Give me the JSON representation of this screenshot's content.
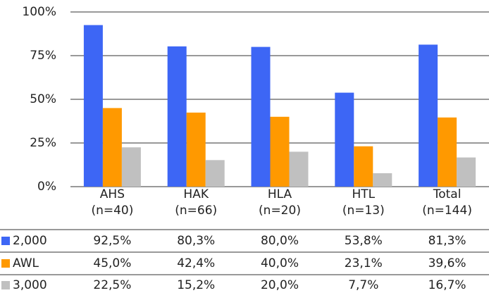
{
  "chart_data": {
    "type": "bar",
    "categories": [
      "AHS",
      "HAK",
      "HLA",
      "HTL",
      "Total"
    ],
    "category_sublabels": [
      "(n=40)",
      "(n=66)",
      "(n=20)",
      "(n=13)",
      "(n=144)"
    ],
    "series": [
      {
        "name": "2,000",
        "color": "#3d66f5",
        "values": [
          92.5,
          80.3,
          80.0,
          53.8,
          81.3
        ],
        "value_labels": [
          "92,5%",
          "80,3%",
          "80,0%",
          "53,8%",
          "81,3%"
        ]
      },
      {
        "name": "AWL",
        "color": "#ff9900",
        "values": [
          45.0,
          42.4,
          40.0,
          23.1,
          39.6
        ],
        "value_labels": [
          "45,0%",
          "42,4%",
          "40,0%",
          "23,1%",
          "39,6%"
        ]
      },
      {
        "name": "3,000",
        "color": "#c0c0c0",
        "values": [
          22.5,
          15.2,
          20.0,
          7.7,
          16.7
        ],
        "value_labels": [
          "22,5%",
          "15,2%",
          "20,0%",
          "7,7%",
          "16,7%"
        ]
      }
    ],
    "ylim": [
      0,
      100
    ],
    "yticks": [
      {
        "value": 0,
        "label": "0%"
      },
      {
        "value": 25,
        "label": "25%"
      },
      {
        "value": 50,
        "label": "50%"
      },
      {
        "value": 75,
        "label": "75%"
      },
      {
        "value": 100,
        "label": "100%"
      }
    ],
    "grid": true
  }
}
